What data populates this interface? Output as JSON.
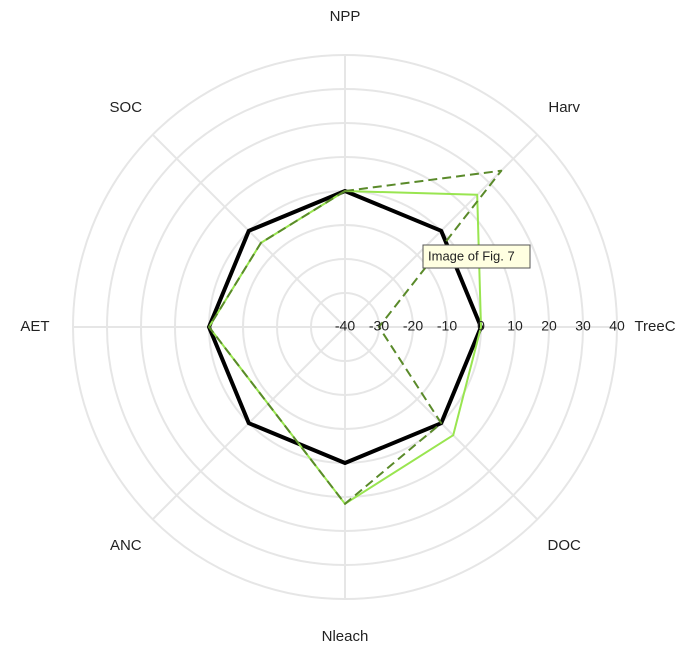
{
  "chart_data": {
    "type": "radar",
    "categories": [
      "NPP",
      "Harv",
      "TreeC",
      "DOC",
      "Nleach",
      "ANC",
      "AET",
      "SOC"
    ],
    "rlim": [
      -40,
      40
    ],
    "rticks": [
      -40,
      -30,
      -20,
      -10,
      0,
      10,
      20,
      30,
      40
    ],
    "grid": true,
    "series": [
      {
        "color": "#000000",
        "dash": false,
        "values": [
          0,
          0,
          0,
          0,
          0,
          0,
          0,
          0
        ]
      },
      {
        "color": "#99e550",
        "dash": false,
        "values": [
          0,
          15,
          0,
          5,
          12,
          -8,
          0,
          -5
        ]
      },
      {
        "color": "#5a8a2a",
        "dash": true,
        "values": [
          0,
          25,
          -30,
          0,
          12,
          -8,
          0,
          -5
        ]
      }
    ],
    "tooltip": "Image of Fig. 7"
  }
}
